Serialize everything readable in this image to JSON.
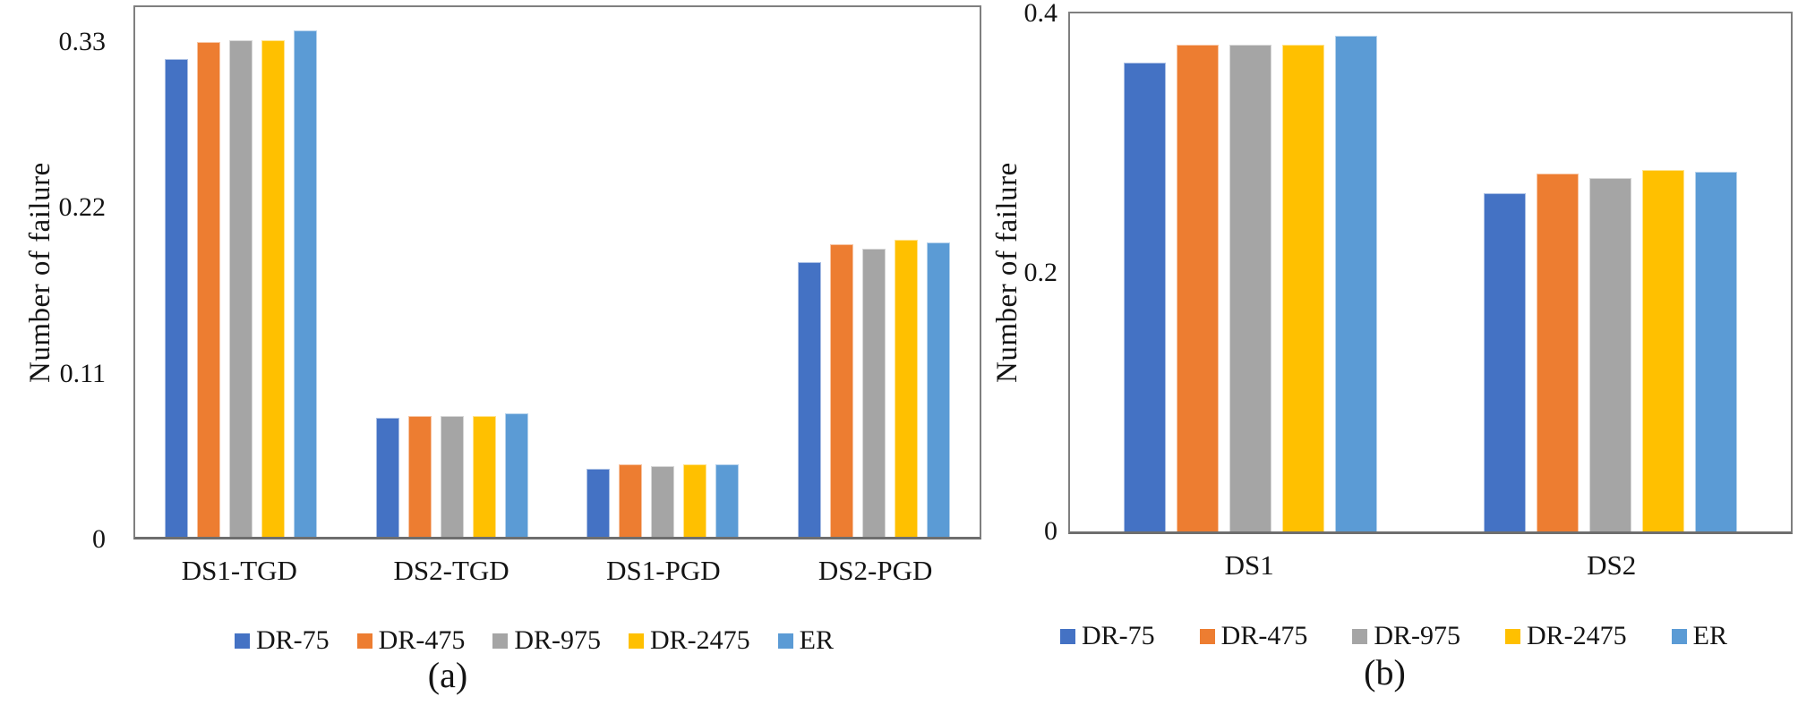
{
  "figure": {
    "background": "#FFFFFF",
    "axis_color": "#7F7F7F",
    "text_color": "#141414"
  },
  "chart_data": [
    {
      "type": "bar",
      "caption": "(a)",
      "title": "",
      "xlabel": "",
      "ylabel": "Number of failure",
      "categories": [
        "DS1-TGD",
        "DS2-TGD",
        "DS1-PGD",
        "DS2-PGD"
      ],
      "yticks": [
        {
          "label": "0",
          "value": 0
        },
        {
          "label": "0.11",
          "value": 0.11
        },
        {
          "label": "0.22",
          "value": 0.22
        },
        {
          "label": "0.33",
          "value": 0.33
        }
      ],
      "ylim": [
        0,
        0.353
      ],
      "grid": false,
      "legend_position": "bottom",
      "series": [
        {
          "name": "DR-75",
          "color": "#4472C4",
          "values": [
            0.317,
            0.079,
            0.045,
            0.182
          ]
        },
        {
          "name": "DR-475",
          "color": "#ED7D31",
          "values": [
            0.328,
            0.08,
            0.048,
            0.194
          ]
        },
        {
          "name": "DR-975",
          "color": "#A5A5A5",
          "values": [
            0.329,
            0.08,
            0.047,
            0.191
          ]
        },
        {
          "name": "DR-2475",
          "color": "#FFC000",
          "values": [
            0.329,
            0.08,
            0.048,
            0.197
          ]
        },
        {
          "name": "ER",
          "color": "#5B9BD5",
          "values": [
            0.336,
            0.082,
            0.048,
            0.195
          ]
        }
      ]
    },
    {
      "type": "bar",
      "caption": "(b)",
      "title": "",
      "xlabel": "",
      "ylabel": "Number of failure",
      "categories": [
        "DS1",
        "DS2"
      ],
      "yticks": [
        {
          "label": "0",
          "value": 0
        },
        {
          "label": "0.2",
          "value": 0.2
        },
        {
          "label": "0.4",
          "value": 0.4
        }
      ],
      "ylim": [
        0,
        0.4
      ],
      "grid": false,
      "legend_position": "bottom",
      "series": [
        {
          "name": "DR-75",
          "color": "#4472C4",
          "values": [
            0.362,
            0.261
          ]
        },
        {
          "name": "DR-475",
          "color": "#ED7D31",
          "values": [
            0.376,
            0.276
          ]
        },
        {
          "name": "DR-975",
          "color": "#A5A5A5",
          "values": [
            0.376,
            0.273
          ]
        },
        {
          "name": "DR-2475",
          "color": "#FFC000",
          "values": [
            0.376,
            0.279
          ]
        },
        {
          "name": "ER",
          "color": "#5B9BD5",
          "values": [
            0.383,
            0.278
          ]
        }
      ]
    }
  ]
}
